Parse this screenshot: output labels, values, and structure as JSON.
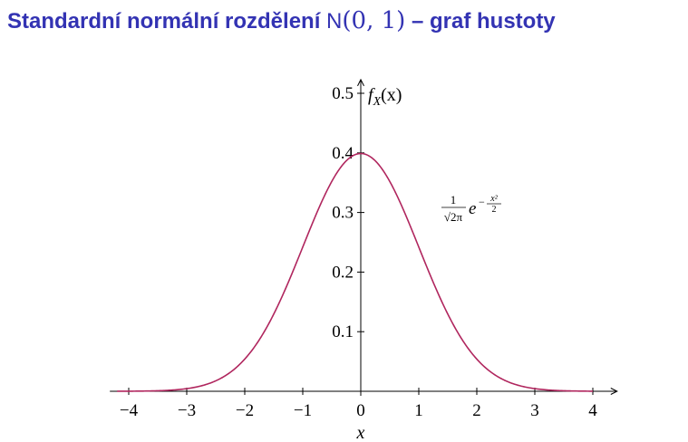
{
  "title": {
    "text": "Standardní normální rozdělení",
    "dist_symbol": "N",
    "dist_params": "(0, 1)",
    "suffix": "– graf hustoty"
  },
  "chart_data": {
    "type": "line",
    "title": "Standardní normální rozdělení N(0, 1) – graf hustoty",
    "xlabel": "x",
    "ylabel": "f_X(x)",
    "xlim": [
      -4.2,
      4.2
    ],
    "ylim": [
      0,
      0.52
    ],
    "xticks": [
      -4,
      -3,
      -2,
      -1,
      0,
      1,
      2,
      3,
      4
    ],
    "xtick_labels": [
      "−4",
      "−3",
      "−2",
      "−1",
      "0",
      "1",
      "2",
      "3",
      "4"
    ],
    "yticks": [
      0.1,
      0.2,
      0.3,
      0.4,
      0.5
    ],
    "ytick_labels": [
      "0.1",
      "0.2",
      "0.3",
      "0.4",
      "0.5"
    ],
    "grid": false,
    "series": [
      {
        "color": "#b0265e",
        "function": "1/sqrt(2π) · exp(−x²/2)",
        "x": [
          -4,
          -3.5,
          -3,
          -2.5,
          -2,
          -1.5,
          -1,
          -0.5,
          0,
          0.5,
          1,
          1.5,
          2,
          2.5,
          3,
          3.5,
          4
        ],
        "values": [
          0.0001,
          0.0009,
          0.0044,
          0.0175,
          0.054,
          0.1295,
          0.242,
          0.3521,
          0.3989,
          0.3521,
          0.242,
          0.1295,
          0.054,
          0.0175,
          0.0044,
          0.0009,
          0.0001
        ]
      }
    ],
    "annotation": {
      "numerator": "1",
      "denominator": "√2π",
      "base": "e",
      "exponent_sign": "−",
      "exponent_num": "x²",
      "exponent_den": "2"
    }
  }
}
